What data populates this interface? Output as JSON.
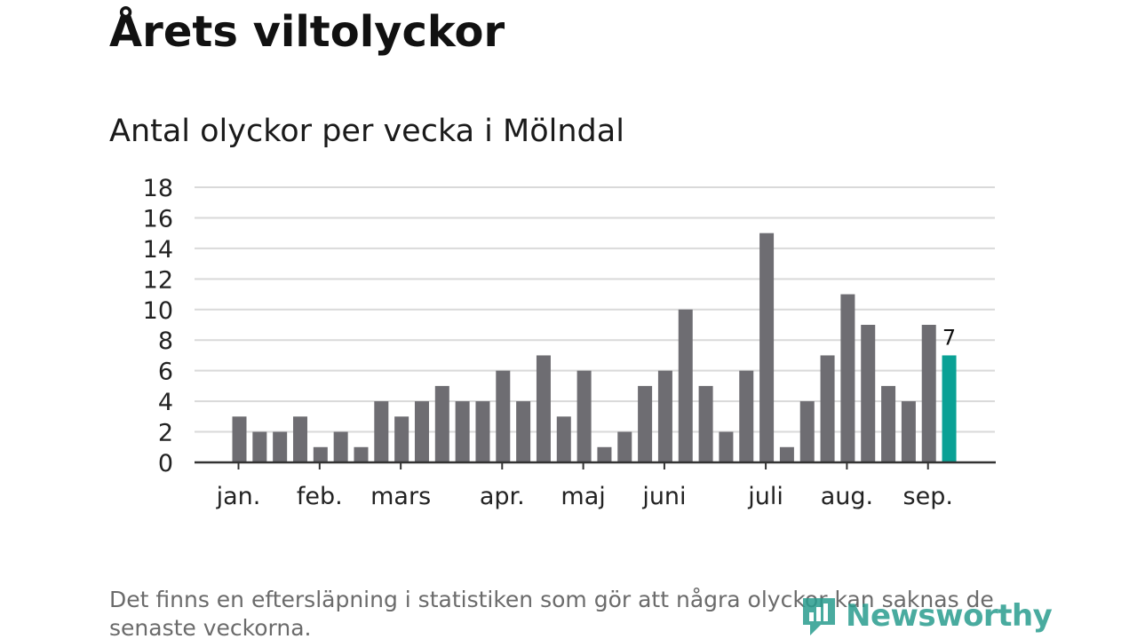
{
  "title": "Årets viltolyckor",
  "subtitle": "Antal olyckor per vecka i Mölndal",
  "note": "Det finns en eftersläpning i statistiken som gör att några olyckor kan saknas de senaste veckorna.",
  "logo_text": "Newsworthy",
  "colors": {
    "bar": "#6e6d72",
    "highlight": "#0aa195",
    "grid": "#d9d9d9",
    "axis": "#333333",
    "logo": "#2a9d8f"
  },
  "chart_data": {
    "type": "bar",
    "title": "Antal olyckor per vecka i Mölndal",
    "xlabel": "",
    "ylabel": "",
    "ylim": [
      0,
      18
    ],
    "yticks": [
      0,
      2,
      4,
      6,
      8,
      10,
      12,
      14,
      16,
      18
    ],
    "grid": true,
    "values": [
      3,
      2,
      2,
      3,
      1,
      2,
      1,
      4,
      3,
      4,
      5,
      4,
      4,
      6,
      4,
      7,
      3,
      6,
      1,
      2,
      5,
      6,
      10,
      5,
      2,
      6,
      15,
      1,
      4,
      7,
      11,
      9,
      5,
      4,
      9,
      7
    ],
    "month_labels": [
      {
        "label": "jan.",
        "week": 1
      },
      {
        "label": "feb.",
        "week": 5
      },
      {
        "label": "mars",
        "week": 9
      },
      {
        "label": "apr.",
        "week": 14
      },
      {
        "label": "maj",
        "week": 18
      },
      {
        "label": "juni",
        "week": 22
      },
      {
        "label": "juli",
        "week": 27
      },
      {
        "label": "aug.",
        "week": 31
      },
      {
        "label": "sep.",
        "week": 35
      }
    ],
    "highlight_index": 35,
    "highlight_label": "7"
  }
}
